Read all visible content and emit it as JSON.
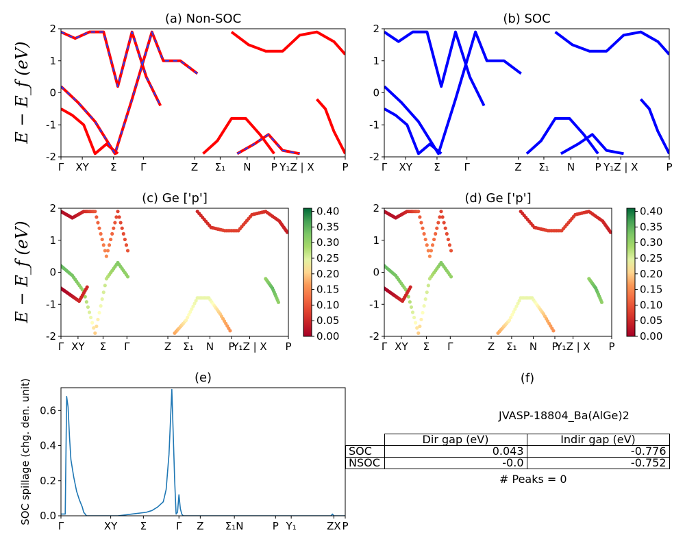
{
  "figure": {
    "ylabel_top": "E − E_f (eV)",
    "ylabel_mid": "E − E_f (eV)"
  },
  "chart_data": [
    {
      "id": "a",
      "type": "line",
      "title": "(a) Non-SOC",
      "ylim": [
        -2,
        2
      ],
      "yticks": [
        -2,
        -1,
        0,
        1,
        2
      ],
      "xticks": [
        "Γ",
        "XY",
        "Σ",
        "Γ",
        "Z",
        "Σ₁",
        "N",
        "P",
        "Y₁Z | X",
        "P"
      ],
      "series": [
        {
          "color": "#ff0000",
          "dash": false,
          "bands": [
            {
              "x": [
                0,
                0.05,
                0.1,
                0.15,
                0.2,
                0.25,
                0.3,
                0.35
              ],
              "y": [
                1.9,
                1.7,
                1.9,
                1.9,
                0.2,
                1.9,
                0.5,
                -0.4
              ]
            },
            {
              "x": [
                0,
                0.06,
                0.12,
                0.19,
                0.25,
                0.32,
                0.36,
                0.42,
                0.48
              ],
              "y": [
                0.2,
                -0.3,
                -0.9,
                -1.9,
                -0.2,
                1.9,
                1.0,
                1.0,
                0.6
              ]
            },
            {
              "x": [
                0,
                0.04,
                0.08,
                0.12,
                0.16,
                0.2
              ],
              "y": [
                -0.5,
                -0.7,
                -1.0,
                -1.9,
                -1.6,
                -1.9
              ]
            },
            {
              "x": [
                0.5,
                0.55,
                0.6,
                0.65,
                0.7,
                0.75
              ],
              "y": [
                -1.9,
                -1.5,
                -0.8,
                -0.8,
                -1.3,
                -1.9
              ]
            },
            {
              "x": [
                0.6,
                0.66,
                0.72,
                0.78,
                0.84,
                0.9,
                0.96,
                1.0
              ],
              "y": [
                1.9,
                1.5,
                1.3,
                1.3,
                1.8,
                1.9,
                1.6,
                1.2
              ]
            },
            {
              "x": [
                0.62,
                0.68,
                0.73,
                0.78,
                0.84
              ],
              "y": [
                -1.9,
                -1.6,
                -1.3,
                -1.8,
                -1.9
              ]
            },
            {
              "x": [
                0.9,
                0.93,
                0.96,
                1.0
              ],
              "y": [
                -0.2,
                -0.5,
                -1.2,
                -1.9
              ]
            }
          ]
        },
        {
          "color": "#1f3fff",
          "dash": true,
          "bands": [
            {
              "x": [
                0,
                0.05,
                0.1,
                0.15,
                0.2,
                0.25,
                0.3,
                0.35
              ],
              "y": [
                1.9,
                1.7,
                1.9,
                1.9,
                0.2,
                1.9,
                0.5,
                -0.4
              ]
            },
            {
              "x": [
                0,
                0.06,
                0.12,
                0.19,
                0.25,
                0.32,
                0.36,
                0.42,
                0.48
              ],
              "y": [
                0.2,
                -0.3,
                -0.9,
                -1.9,
                -0.2,
                1.9,
                1.0,
                1.0,
                0.6
              ]
            },
            {
              "x": [
                0.62,
                0.68,
                0.73,
                0.78,
                0.84
              ],
              "y": [
                -1.9,
                -1.6,
                -1.3,
                -1.8,
                -1.9
              ]
            }
          ]
        }
      ]
    },
    {
      "id": "b",
      "type": "line",
      "title": "(b) SOC",
      "ylim": [
        -2,
        2
      ],
      "yticks": [
        -2,
        -1,
        0,
        1,
        2
      ],
      "xticks": [
        "Γ",
        "XY",
        "Σ",
        "Γ",
        "Z",
        "Σ₁",
        "N",
        "P",
        "Y₁Z | X",
        "P"
      ],
      "series": [
        {
          "color": "#0000ff",
          "dash": false,
          "bands": [
            {
              "x": [
                0,
                0.05,
                0.1,
                0.15,
                0.2,
                0.25,
                0.3,
                0.35
              ],
              "y": [
                1.9,
                1.6,
                1.9,
                1.9,
                0.2,
                1.9,
                0.5,
                -0.4
              ]
            },
            {
              "x": [
                0,
                0.06,
                0.12,
                0.19,
                0.25,
                0.32,
                0.36,
                0.42,
                0.48
              ],
              "y": [
                0.2,
                -0.3,
                -0.9,
                -1.9,
                -0.2,
                1.9,
                1.0,
                1.0,
                0.6
              ]
            },
            {
              "x": [
                0,
                0.04,
                0.08,
                0.12,
                0.16,
                0.2
              ],
              "y": [
                -0.5,
                -0.7,
                -1.0,
                -1.9,
                -1.6,
                -1.9
              ]
            },
            {
              "x": [
                0.5,
                0.55,
                0.6,
                0.65,
                0.7,
                0.75
              ],
              "y": [
                -1.9,
                -1.5,
                -0.8,
                -0.8,
                -1.3,
                -1.9
              ]
            },
            {
              "x": [
                0.6,
                0.66,
                0.72,
                0.78,
                0.84,
                0.9,
                0.96,
                1.0
              ],
              "y": [
                1.9,
                1.5,
                1.3,
                1.3,
                1.8,
                1.9,
                1.6,
                1.2
              ]
            },
            {
              "x": [
                0.62,
                0.68,
                0.73,
                0.78,
                0.84
              ],
              "y": [
                -1.9,
                -1.6,
                -1.3,
                -1.8,
                -1.9
              ]
            },
            {
              "x": [
                0.9,
                0.93,
                0.96,
                1.0
              ],
              "y": [
                -0.2,
                -0.5,
                -1.2,
                -1.9
              ]
            }
          ]
        }
      ]
    },
    {
      "id": "c",
      "type": "scatter",
      "title": "(c)  Ge ['p']",
      "ylim": [
        -2,
        2
      ],
      "yticks": [
        -2,
        -1,
        0,
        1,
        2
      ],
      "xticks": [
        "Γ",
        "XY",
        "Σ",
        "Γ",
        "Z",
        "Σ₁",
        "N",
        "P",
        "Y₁Z | X",
        "P"
      ],
      "colorbar": {
        "min": 0.0,
        "max": 0.41,
        "ticks": [
          "0.00",
          "0.05",
          "0.10",
          "0.15",
          "0.20",
          "0.25",
          "0.30",
          "0.35",
          "0.40"
        ]
      },
      "bands": [
        {
          "x": [
            0,
            0.05,
            0.1,
            0.15,
            0.2,
            0.25,
            0.3
          ],
          "y": [
            1.9,
            1.7,
            1.9,
            1.9,
            0.5,
            1.9,
            0.5
          ],
          "w": [
            0.02,
            0.02,
            0.05,
            0.1,
            0.15,
            0.08,
            0.1
          ]
        },
        {
          "x": [
            0,
            0.05,
            0.1,
            0.15,
            0.2,
            0.25,
            0.3
          ],
          "y": [
            0.2,
            -0.1,
            -0.6,
            -1.9,
            -0.2,
            0.3,
            -0.2
          ],
          "w": [
            0.35,
            0.33,
            0.3,
            0.2,
            0.27,
            0.32,
            0.3
          ]
        },
        {
          "x": [
            0,
            0.04,
            0.08,
            0.12
          ],
          "y": [
            -0.5,
            -0.7,
            -0.9,
            -0.4
          ],
          "w": [
            0.0,
            0.02,
            0.05,
            0.05
          ]
        },
        {
          "x": [
            0.5,
            0.55,
            0.6,
            0.65,
            0.7,
            0.75
          ],
          "y": [
            -1.9,
            -1.5,
            -0.8,
            -0.8,
            -1.3,
            -1.9
          ],
          "w": [
            0.18,
            0.22,
            0.24,
            0.24,
            0.2,
            0.15
          ]
        },
        {
          "x": [
            0.6,
            0.66,
            0.72,
            0.78,
            0.84,
            0.9,
            0.96,
            1.0
          ],
          "y": [
            1.9,
            1.4,
            1.3,
            1.3,
            1.8,
            1.9,
            1.6,
            1.2
          ],
          "w": [
            0.05,
            0.06,
            0.08,
            0.08,
            0.07,
            0.06,
            0.05,
            0.04
          ]
        },
        {
          "x": [
            0.9,
            0.93,
            0.96
          ],
          "y": [
            -0.2,
            -0.5,
            -1.0
          ],
          "w": [
            0.3,
            0.35,
            0.3
          ]
        }
      ]
    },
    {
      "id": "d",
      "type": "scatter",
      "title": "(d) Ge ['p']",
      "ylim": [
        -2,
        2
      ],
      "yticks": [
        -2,
        -1,
        0,
        1,
        2
      ],
      "xticks": [
        "Γ",
        "XY",
        "Σ",
        "Γ",
        "Z",
        "Σ₁",
        "N",
        "P",
        "Y₁Z | X",
        "P"
      ],
      "colorbar": {
        "min": 0.0,
        "max": 0.41,
        "ticks": [
          "0.00",
          "0.05",
          "0.10",
          "0.15",
          "0.20",
          "0.25",
          "0.30",
          "0.35",
          "0.40"
        ]
      },
      "bands": [
        {
          "x": [
            0,
            0.05,
            0.1,
            0.15,
            0.2,
            0.25,
            0.3
          ],
          "y": [
            1.9,
            1.7,
            1.9,
            1.9,
            0.5,
            1.9,
            0.5
          ],
          "w": [
            0.02,
            0.02,
            0.05,
            0.1,
            0.15,
            0.08,
            0.1
          ]
        },
        {
          "x": [
            0,
            0.05,
            0.1,
            0.15,
            0.2,
            0.25,
            0.3
          ],
          "y": [
            0.2,
            -0.1,
            -0.6,
            -1.9,
            -0.2,
            0.3,
            -0.2
          ],
          "w": [
            0.35,
            0.33,
            0.3,
            0.2,
            0.27,
            0.32,
            0.3
          ]
        },
        {
          "x": [
            0,
            0.04,
            0.08,
            0.12
          ],
          "y": [
            -0.5,
            -0.7,
            -0.9,
            -0.4
          ],
          "w": [
            0.0,
            0.02,
            0.05,
            0.05
          ]
        },
        {
          "x": [
            0.5,
            0.55,
            0.6,
            0.65,
            0.7,
            0.75
          ],
          "y": [
            -1.9,
            -1.5,
            -0.8,
            -0.8,
            -1.3,
            -1.9
          ],
          "w": [
            0.18,
            0.22,
            0.24,
            0.24,
            0.2,
            0.15
          ]
        },
        {
          "x": [
            0.6,
            0.66,
            0.72,
            0.78,
            0.84,
            0.9,
            0.96,
            1.0
          ],
          "y": [
            1.9,
            1.4,
            1.3,
            1.3,
            1.8,
            1.9,
            1.6,
            1.2
          ],
          "w": [
            0.05,
            0.06,
            0.08,
            0.08,
            0.07,
            0.06,
            0.05,
            0.04
          ]
        },
        {
          "x": [
            0.9,
            0.93,
            0.96
          ],
          "y": [
            -0.2,
            -0.5,
            -1.0
          ],
          "w": [
            0.3,
            0.35,
            0.3
          ]
        }
      ]
    },
    {
      "id": "e",
      "type": "line",
      "title": "(e)",
      "ylabel": "SOC spillage (chg. den. unit)",
      "ylim": [
        0,
        0.73
      ],
      "yticks": [
        0.0,
        0.2,
        0.4,
        0.6
      ],
      "xticks": [
        "Γ",
        "XY",
        "Σ",
        "Γ",
        "Z",
        "Σ₁N",
        "P",
        "Y₁",
        "ZX",
        "P"
      ],
      "series": [
        {
          "color": "#1f77b4",
          "x": [
            0,
            0.015,
            0.02,
            0.025,
            0.03,
            0.035,
            0.045,
            0.055,
            0.065,
            0.075,
            0.08,
            0.085,
            0.09,
            0.1,
            0.12,
            0.15,
            0.18,
            0.2,
            0.25,
            0.3,
            0.32,
            0.34,
            0.36,
            0.37,
            0.38,
            0.39,
            0.4,
            0.405,
            0.41,
            0.415,
            0.42,
            0.425,
            0.43,
            0.44,
            0.5,
            0.6,
            0.7,
            0.8,
            0.9,
            0.95,
            0.955,
            0.96,
            1.0
          ],
          "y": [
            0.01,
            0.01,
            0.68,
            0.62,
            0.45,
            0.32,
            0.22,
            0.14,
            0.09,
            0.05,
            0.02,
            0.01,
            0.0,
            0.0,
            0.0,
            0.0,
            0.0,
            0.0,
            0.01,
            0.02,
            0.03,
            0.05,
            0.08,
            0.15,
            0.35,
            0.72,
            0.2,
            0.01,
            0.02,
            0.12,
            0.04,
            0.01,
            0.0,
            0.0,
            0.0,
            0.0,
            0.0,
            0.0,
            0.0,
            0.0,
            0.01,
            0.0,
            0.0
          ]
        }
      ]
    }
  ],
  "table": {
    "title": "JVASP-18804_Ba(AlGe)2",
    "columns": [
      "Dir gap (eV)",
      "Indir gap (eV)"
    ],
    "rows": [
      {
        "label": "SOC",
        "dir": "0.043",
        "indir": "-0.776"
      },
      {
        "label": "NSOC",
        "dir": "-0.0",
        "indir": "-0.752"
      }
    ],
    "peaks": "# Peaks = 0"
  }
}
